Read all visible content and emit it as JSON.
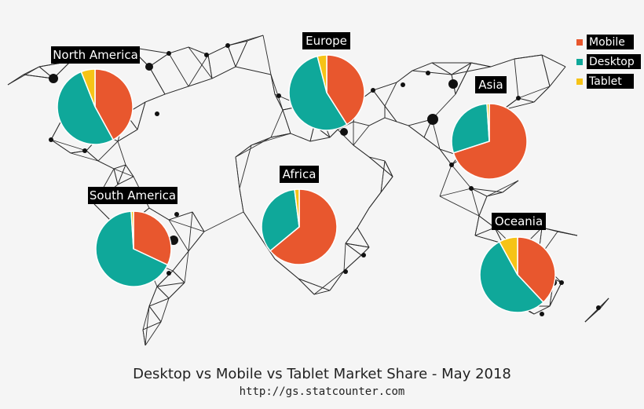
{
  "chart_data": {
    "type": "pie",
    "title": "Desktop vs Mobile vs Tablet Market Share - May 2018",
    "subtitle": "http://gs.statcounter.com",
    "categories": [
      "Mobile",
      "Desktop",
      "Tablet"
    ],
    "colors": {
      "Mobile": "#e8572e",
      "Desktop": "#0fa89a",
      "Tablet": "#f6c316"
    },
    "legend_position": "top-right",
    "regions": [
      {
        "name": "North America",
        "values": {
          "Mobile": 42,
          "Desktop": 52,
          "Tablet": 6
        }
      },
      {
        "name": "Europe",
        "values": {
          "Mobile": 41,
          "Desktop": 55,
          "Tablet": 4
        }
      },
      {
        "name": "Asia",
        "values": {
          "Mobile": 70,
          "Desktop": 29,
          "Tablet": 1
        }
      },
      {
        "name": "South America",
        "values": {
          "Mobile": 32,
          "Desktop": 67,
          "Tablet": 1
        }
      },
      {
        "name": "Africa",
        "values": {
          "Mobile": 64,
          "Desktop": 34,
          "Tablet": 2
        }
      },
      {
        "name": "Oceania",
        "values": {
          "Mobile": 38,
          "Desktop": 54,
          "Tablet": 8
        }
      }
    ]
  }
}
